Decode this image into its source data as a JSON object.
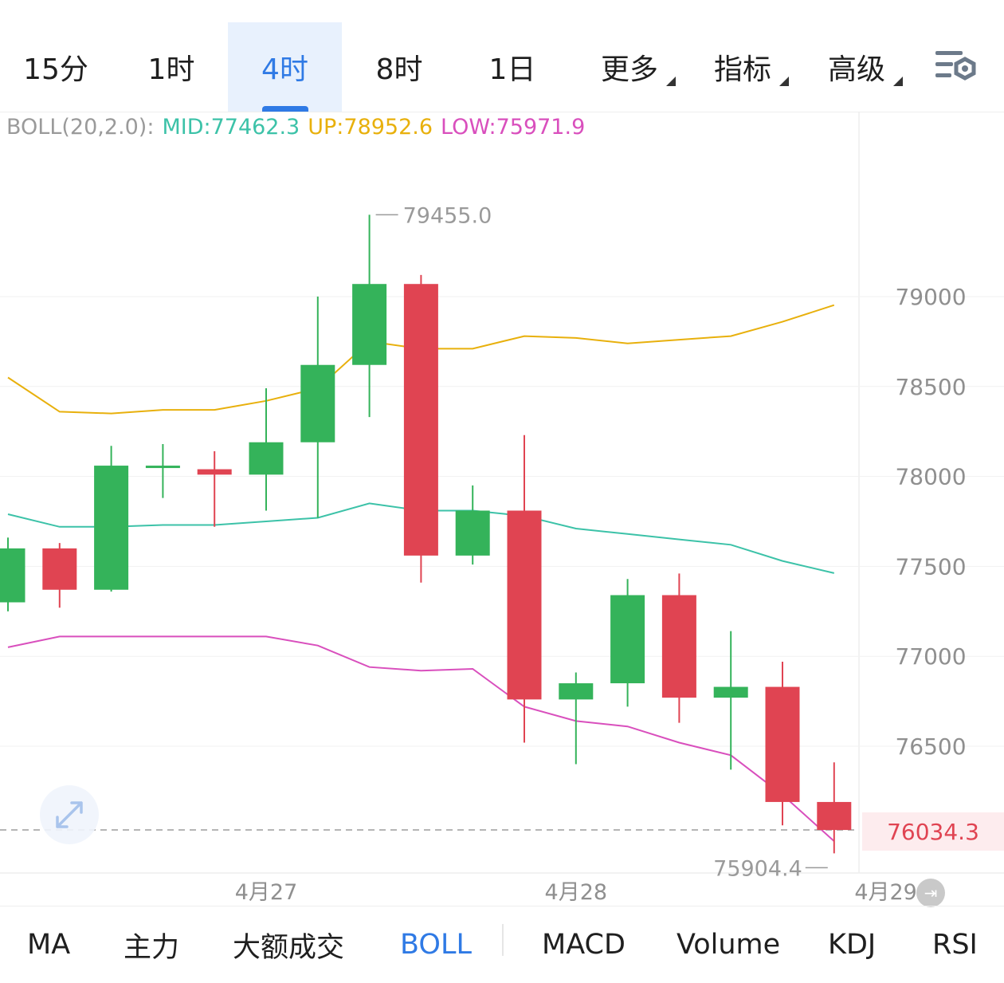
{
  "timeframes": {
    "tf_15m": "15分",
    "tf_1h": "1时",
    "tf_4h": "4时",
    "tf_8h": "8时",
    "tf_1d": "1日",
    "more": "更多",
    "indicators": "指标",
    "advanced": "高级",
    "active": "4时"
  },
  "boll_legend": {
    "name": "BOLL(20,2.0):",
    "mid": "MID:77462.3",
    "up": "UP:78952.6",
    "low": "LOW:75971.9"
  },
  "colors": {
    "up_candle": "#34b35a",
    "down_candle": "#e04452",
    "mid_line": "#3cc2a8",
    "upper_line": "#e8b00c",
    "lower_line": "#d94fbd",
    "accent": "#2f7ae5"
  },
  "current_price": "76034.3",
  "indicator_tabs": {
    "ma": "MA",
    "main_force": "主力",
    "large_trades": "大额成交",
    "boll": "BOLL",
    "macd": "MACD",
    "volume": "Volume",
    "kdj": "KDJ",
    "rsi": "RSI",
    "active": "BOLL"
  },
  "chart_data": {
    "type": "candlestick",
    "y_ticks": [
      79000,
      78500,
      78000,
      77500,
      77000,
      76500
    ],
    "y_tick_labels": [
      "79000",
      "78500",
      "78000",
      "77500",
      "77000",
      "76500"
    ],
    "y_range": [
      75700,
      79700
    ],
    "x_labels": [
      {
        "label": "4月27",
        "index": 5
      },
      {
        "label": "4月28",
        "index": 11
      },
      {
        "label": "4月29",
        "index": 17
      }
    ],
    "annotations": {
      "high_label": "79455.0",
      "high_value": 79455.0,
      "high_index": 7,
      "low_label": "75904.4",
      "low_value": 75904.4,
      "low_index": 16
    },
    "current_price": 76034.3,
    "candles": [
      {
        "open": 77300,
        "close": 77600,
        "high": 77660,
        "low": 77250
      },
      {
        "open": 77600,
        "close": 77370,
        "high": 77630,
        "low": 77270
      },
      {
        "open": 77370,
        "close": 78060,
        "high": 78170,
        "low": 77360
      },
      {
        "open": 78060,
        "close": 78060,
        "high": 78180,
        "low": 77880
      },
      {
        "open": 78040,
        "close": 78010,
        "high": 78140,
        "low": 77720
      },
      {
        "open": 78010,
        "close": 78190,
        "high": 78490,
        "low": 77810
      },
      {
        "open": 78190,
        "close": 78620,
        "high": 79000,
        "low": 77770
      },
      {
        "open": 78620,
        "close": 79070,
        "high": 79455,
        "low": 78330
      },
      {
        "open": 79070,
        "close": 77560,
        "high": 79120,
        "low": 77410
      },
      {
        "open": 77560,
        "close": 77810,
        "high": 77950,
        "low": 77510
      },
      {
        "open": 77810,
        "close": 76760,
        "high": 78230,
        "low": 76520
      },
      {
        "open": 76760,
        "close": 76850,
        "high": 76910,
        "low": 76400
      },
      {
        "open": 76850,
        "close": 77340,
        "high": 77430,
        "low": 76720
      },
      {
        "open": 77340,
        "close": 76770,
        "high": 77460,
        "low": 76630
      },
      {
        "open": 76770,
        "close": 76830,
        "high": 77140,
        "low": 76370
      },
      {
        "open": 76830,
        "close": 76190,
        "high": 76970,
        "low": 76060
      },
      {
        "open": 76190,
        "close": 76034.3,
        "high": 76410,
        "low": 75904.4
      }
    ],
    "boll_mid": [
      77790,
      77720,
      77720,
      77730,
      77730,
      77750,
      77770,
      77850,
      77810,
      77810,
      77780,
      77710,
      77680,
      77650,
      77620,
      77530,
      77462.3
    ],
    "boll_upper": [
      78550,
      78360,
      78350,
      78370,
      78370,
      78420,
      78490,
      78750,
      78710,
      78710,
      78780,
      78770,
      78740,
      78760,
      78780,
      78860,
      78952.6
    ],
    "boll_lower": [
      77050,
      77110,
      77110,
      77110,
      77110,
      77110,
      77060,
      76940,
      76920,
      76930,
      76720,
      76640,
      76610,
      76520,
      76450,
      76230,
      75971.9
    ]
  }
}
